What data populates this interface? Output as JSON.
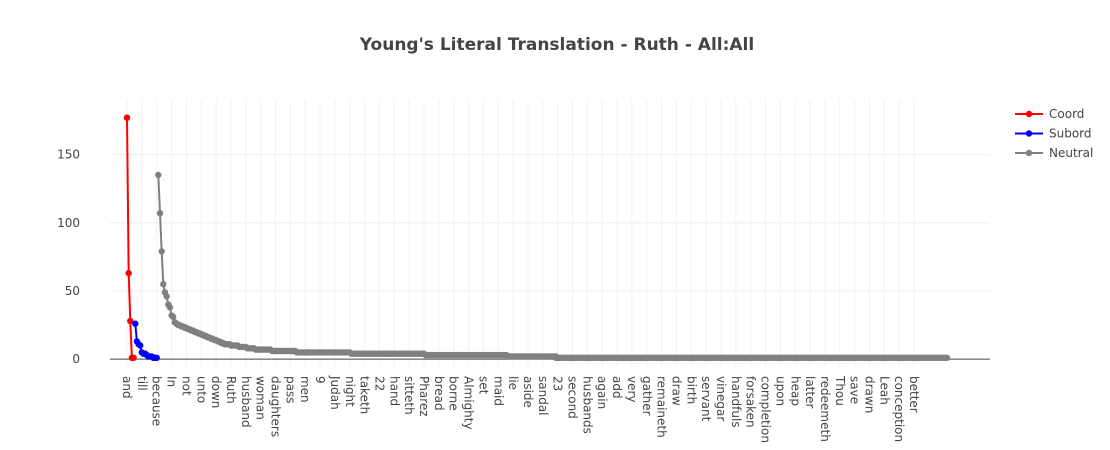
{
  "chart_data": {
    "type": "line",
    "title": "Young's Literal Translation - Ruth - All:All",
    "xlabel": "",
    "ylabel": "",
    "ylim": [
      -5,
      190
    ],
    "y_ticks": [
      0,
      50,
      100,
      150
    ],
    "grid": true,
    "legend_position": "top-right",
    "x_tick_labels": [
      "and",
      "till",
      "because",
      "In",
      "not",
      "unto",
      "down",
      "Ruth",
      "husband",
      "woman",
      "daughters",
      "pass",
      "men",
      "9",
      "Judah",
      "night",
      "taketh",
      "22",
      "hand",
      "sitteth",
      "Pharez",
      "bread",
      "borne",
      "Almighty",
      "set",
      "maid",
      "lie",
      "aside",
      "sandal",
      "23",
      "second",
      "husbands",
      "again",
      "add",
      "very",
      "gather",
      "remaineth",
      "draw",
      "birth",
      "servant",
      "vinegar",
      "handfuls",
      "forsaken",
      "completion",
      "upon",
      "heap",
      "latter",
      "redeemeth",
      "Thou",
      "save",
      "drawn",
      "Leah",
      "conception",
      "better"
    ],
    "series": [
      {
        "name": "Coord",
        "color": "#ff0000",
        "x": [
          0,
          1,
          2,
          3,
          4
        ],
        "y": [
          177,
          63,
          28,
          1,
          1
        ]
      },
      {
        "name": "Subord",
        "color": "#0000ff",
        "x": [
          5,
          6,
          7,
          8,
          9,
          10,
          11,
          12,
          13,
          14,
          15,
          16,
          17,
          18
        ],
        "y": [
          26,
          13,
          11,
          10,
          5,
          4,
          4,
          3,
          2,
          2,
          2,
          1,
          1,
          1
        ]
      },
      {
        "name": "Neutral",
        "color": "#808080",
        "segments": [
          {
            "x_from": 19,
            "x_to": 30,
            "y": [
              135,
              107,
              79,
              55,
              49,
              46,
              40,
              38,
              32,
              31,
              27,
              26
            ]
          },
          {
            "x_from": 30,
            "x_to": 45,
            "y_from": 26,
            "y_to": 18
          },
          {
            "x_from": 45,
            "x_to": 60,
            "y_from": 18,
            "y_to": 11
          },
          {
            "x_from": 60,
            "x_to": 80,
            "y_from": 11,
            "y_to": 7
          },
          {
            "x_from": 80,
            "x_to": 110,
            "y_from": 7,
            "y_to": 5
          },
          {
            "x_from": 110,
            "x_to": 160,
            "y_from": 5,
            "y_to": 4
          },
          {
            "x_from": 160,
            "x_to": 200,
            "y_from": 4,
            "y_to": 3
          },
          {
            "x_from": 200,
            "x_to": 260,
            "y_from": 3,
            "y_to": 2
          },
          {
            "x_from": 260,
            "x_to": 497,
            "y_from": 1,
            "y_to": 1
          }
        ]
      }
    ]
  }
}
